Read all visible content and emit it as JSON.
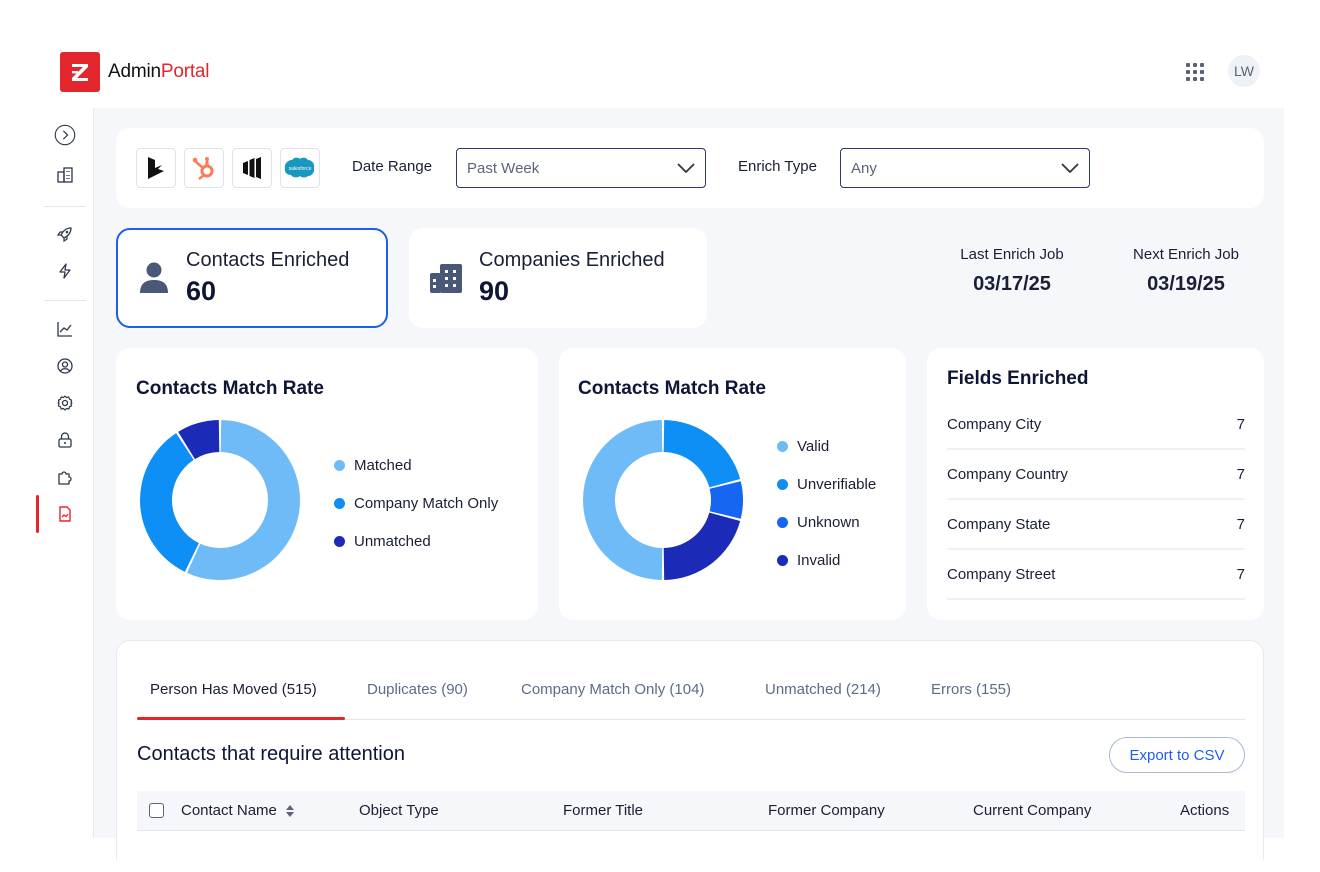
{
  "app": {
    "brand_main": "Admin",
    "brand_accent": "Portal",
    "avatar_initials": "LW"
  },
  "colors": {
    "brand_red": "#e3262e",
    "primary_blue": "#1f5ee8",
    "light_blue": "#6fbbf8",
    "mid_blue": "#0e8ff5",
    "bright_blue": "#1766f2",
    "dark_blue": "#1c2ab8"
  },
  "sidebar": {
    "items": [
      {
        "icon": "chevron-right-circle-icon"
      },
      {
        "icon": "building-icon"
      },
      {
        "icon": "rocket-icon"
      },
      {
        "icon": "lightning-icon"
      },
      {
        "icon": "trending-chart-icon"
      },
      {
        "icon": "user-circle-icon"
      },
      {
        "icon": "gear-icon"
      },
      {
        "icon": "lock-icon"
      },
      {
        "icon": "puzzle-icon"
      },
      {
        "icon": "file-chart-icon",
        "active": true
      }
    ]
  },
  "filters": {
    "crm_icons": [
      "dynamics-icon",
      "hubspot-icon",
      "marketo-icon",
      "salesforce-icon"
    ],
    "salesforce_text": "salesforce",
    "date_range_label": "Date Range",
    "date_range_value": "Past Week",
    "enrich_type_label": "Enrich Type",
    "enrich_type_value": "Any"
  },
  "stats": {
    "contacts": {
      "title": "Contacts Enriched",
      "value": "60"
    },
    "companies": {
      "title": "Companies Enriched",
      "value": "90"
    },
    "last_job": {
      "label": "Last Enrich Job",
      "date": "03/17/25"
    },
    "next_job": {
      "label": "Next Enrich Job",
      "date": "03/19/25"
    }
  },
  "charts": {
    "match_rate": {
      "title": "Contacts Match Rate",
      "legend": [
        "Matched",
        "Company Match Only",
        "Unmatched"
      ]
    },
    "validity": {
      "title": "Contacts Match Rate",
      "legend": [
        "Valid",
        "Unverifiable",
        "Unknown",
        "Invalid"
      ]
    }
  },
  "chart_data": [
    {
      "type": "pie",
      "title": "Contacts Match Rate",
      "categories": [
        "Matched",
        "Company Match Only",
        "Unmatched"
      ],
      "values": [
        57,
        34,
        9
      ],
      "colors": [
        "#6fbbf8",
        "#0e8ff5",
        "#1c2ab8"
      ]
    },
    {
      "type": "pie",
      "title": "Contacts Match Rate",
      "categories": [
        "Valid",
        "Unverifiable",
        "Unknown",
        "Invalid"
      ],
      "values": [
        21,
        8,
        21,
        50
      ],
      "colors": [
        "#0e8ff5",
        "#1766f2",
        "#1c2ab8",
        "#6fbbf8"
      ]
    }
  ],
  "fields_enriched": {
    "title": "Fields Enriched",
    "rows": [
      {
        "name": "Company City",
        "count": "7"
      },
      {
        "name": "Company Country",
        "count": "7"
      },
      {
        "name": "Company State",
        "count": "7"
      },
      {
        "name": "Company Street",
        "count": "7"
      }
    ]
  },
  "attention": {
    "tabs": [
      {
        "label": "Person Has Moved (515)",
        "active": true
      },
      {
        "label": "Duplicates (90)"
      },
      {
        "label": "Company Match Only (104)"
      },
      {
        "label": "Unmatched (214)"
      },
      {
        "label": "Errors (155)"
      }
    ],
    "title": "Contacts that require attention",
    "export_label": "Export to CSV",
    "columns": [
      "Contact Name",
      "Object Type",
      "Former Title",
      "Former Company",
      "Current Company",
      "Actions"
    ]
  }
}
